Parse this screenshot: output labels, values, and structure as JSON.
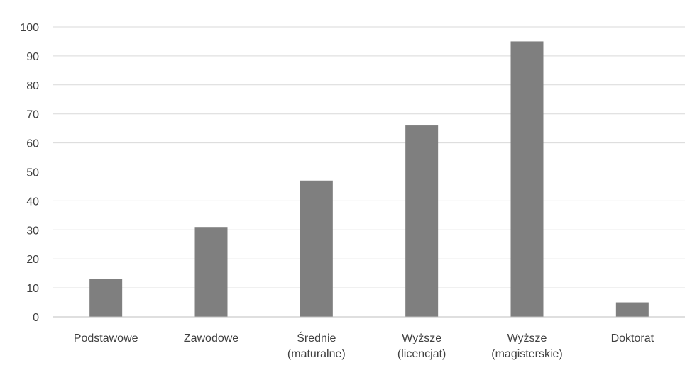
{
  "chart_data": {
    "type": "bar",
    "title": "",
    "xlabel": "",
    "ylabel": "",
    "categories": [
      [
        "Podstawowe"
      ],
      [
        "Zawodowe"
      ],
      [
        "Średnie",
        "(maturalne)"
      ],
      [
        "Wyższe",
        "(licencjat)"
      ],
      [
        "Wyższe",
        "(magisterskie)"
      ],
      [
        "Doktorat"
      ]
    ],
    "values": [
      13,
      31,
      47,
      66,
      95,
      5
    ],
    "ylim": [
      0,
      100
    ],
    "yticks": [
      0,
      10,
      20,
      30,
      40,
      50,
      60,
      70,
      80,
      90,
      100
    ],
    "grid": true,
    "legend": "none",
    "colors": {
      "bar": "#7f7f7f",
      "grid": "#d9d9d9",
      "axis": "#bfbfbf",
      "text": "#404040"
    }
  }
}
